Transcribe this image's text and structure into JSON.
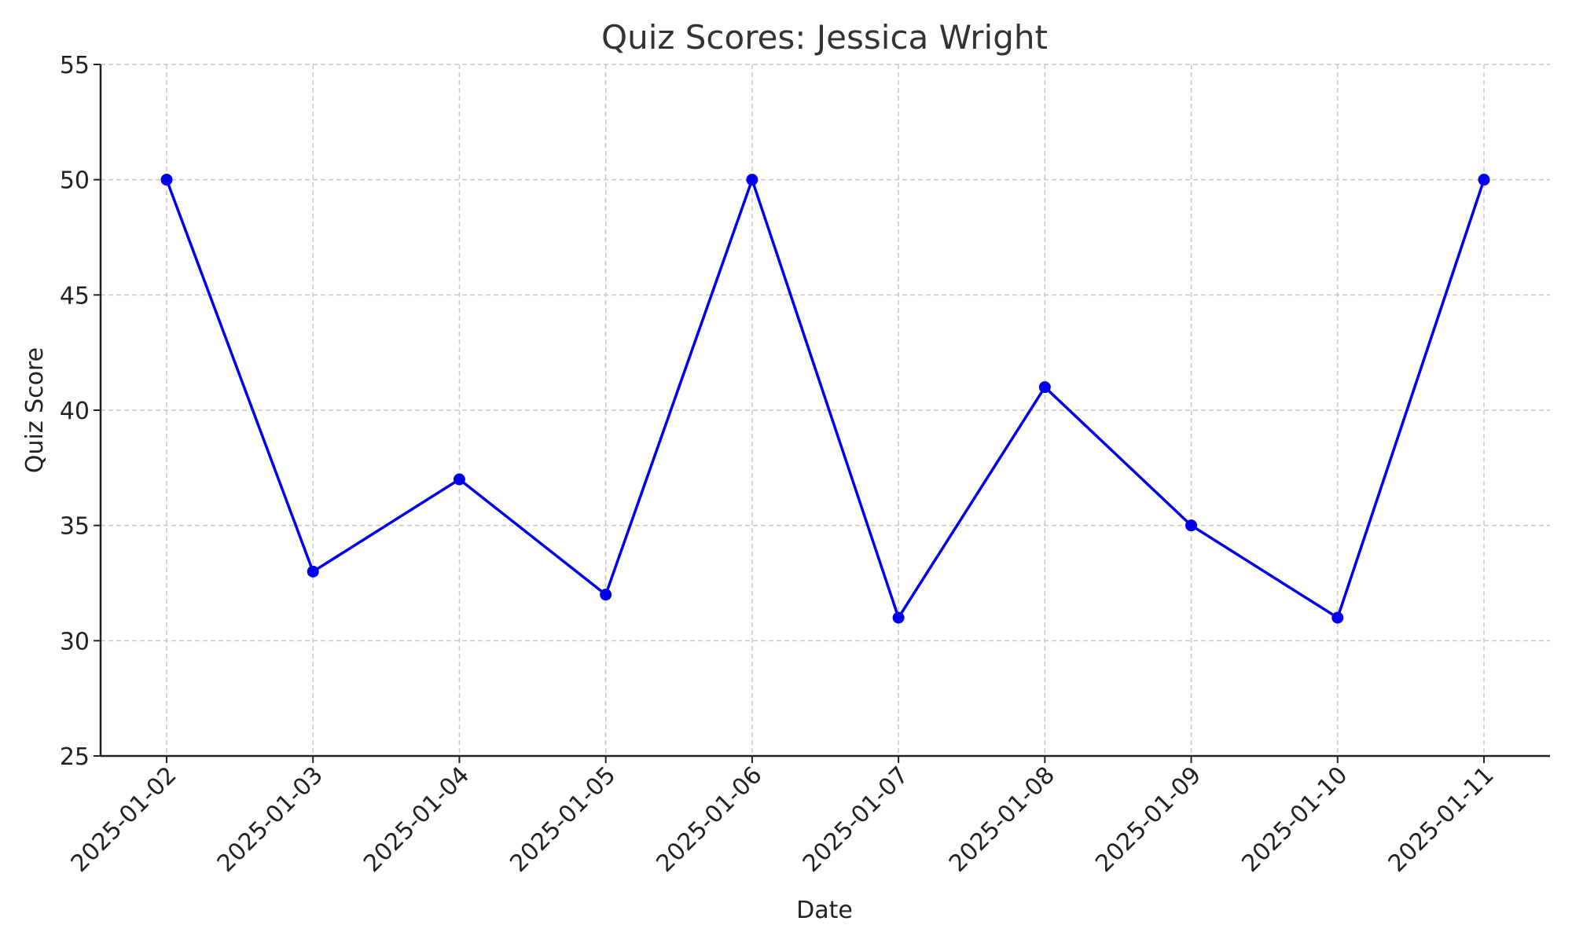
{
  "chart_data": {
    "type": "line",
    "title": "Quiz Scores: Jessica Wright",
    "xlabel": "Date",
    "ylabel": "Quiz Score",
    "x": [
      "2025-01-02",
      "2025-01-03",
      "2025-01-04",
      "2025-01-05",
      "2025-01-06",
      "2025-01-07",
      "2025-01-08",
      "2025-01-09",
      "2025-01-10",
      "2025-01-11"
    ],
    "series": [
      {
        "values": [
          50,
          33,
          37,
          32,
          50,
          31,
          41,
          35,
          31,
          50
        ],
        "color": "#0000ee",
        "marker": "circle"
      }
    ],
    "ylim": [
      25,
      55
    ],
    "yticks": [
      25,
      30,
      35,
      40,
      45,
      50,
      55
    ],
    "grid": true,
    "legend": "none"
  }
}
